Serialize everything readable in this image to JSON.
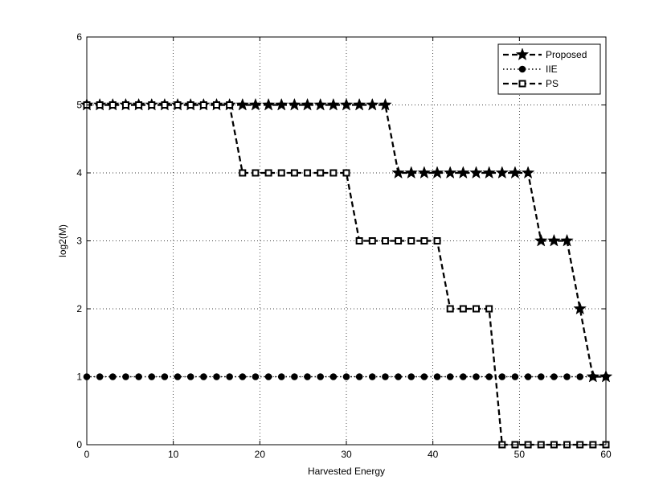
{
  "chart_data": {
    "type": "line",
    "title": "",
    "xlabel": "Harvested Energy",
    "ylabel": "log2(M)",
    "xlim": [
      0,
      60
    ],
    "ylim": [
      0,
      6
    ],
    "xticks": [
      0,
      10,
      20,
      30,
      40,
      50,
      60
    ],
    "yticks": [
      0,
      1,
      2,
      3,
      4,
      5,
      6
    ],
    "grid": true,
    "legend_position": "top-right",
    "x": [
      0,
      1.5,
      3,
      4.5,
      6,
      7.5,
      9,
      10.5,
      12,
      13.5,
      15,
      16.5,
      18,
      19.5,
      21,
      22.5,
      24,
      25.5,
      27,
      28.5,
      30,
      31.5,
      33,
      34.5,
      36,
      37.5,
      39,
      40.5,
      42,
      43.5,
      45,
      46.5,
      48,
      49.5,
      51,
      52.5,
      54,
      55.5,
      57,
      58.5,
      60
    ],
    "series": [
      {
        "name": "Proposed",
        "marker": "star",
        "line_style": "dashed",
        "values": [
          5,
          5,
          5,
          5,
          5,
          5,
          5,
          5,
          5,
          5,
          5,
          5,
          5,
          5,
          5,
          5,
          5,
          5,
          5,
          5,
          5,
          5,
          5,
          5,
          4,
          4,
          4,
          4,
          4,
          4,
          4,
          4,
          4,
          4,
          4,
          3,
          3,
          3,
          2,
          1,
          1
        ]
      },
      {
        "name": "IIE",
        "marker": "circle",
        "line_style": "dotted",
        "values": [
          1,
          1,
          1,
          1,
          1,
          1,
          1,
          1,
          1,
          1,
          1,
          1,
          1,
          1,
          1,
          1,
          1,
          1,
          1,
          1,
          1,
          1,
          1,
          1,
          1,
          1,
          1,
          1,
          1,
          1,
          1,
          1,
          1,
          1,
          1,
          1,
          1,
          1,
          1,
          1,
          1
        ]
      },
      {
        "name": "PS",
        "marker": "square",
        "line_style": "dashed",
        "values": [
          5,
          5,
          5,
          5,
          5,
          5,
          5,
          5,
          5,
          5,
          5,
          5,
          4,
          4,
          4,
          4,
          4,
          4,
          4,
          4,
          4,
          3,
          3,
          3,
          3,
          3,
          3,
          3,
          2,
          2,
          2,
          2,
          0,
          0,
          0,
          0,
          0,
          0,
          0,
          0,
          0
        ]
      }
    ]
  }
}
